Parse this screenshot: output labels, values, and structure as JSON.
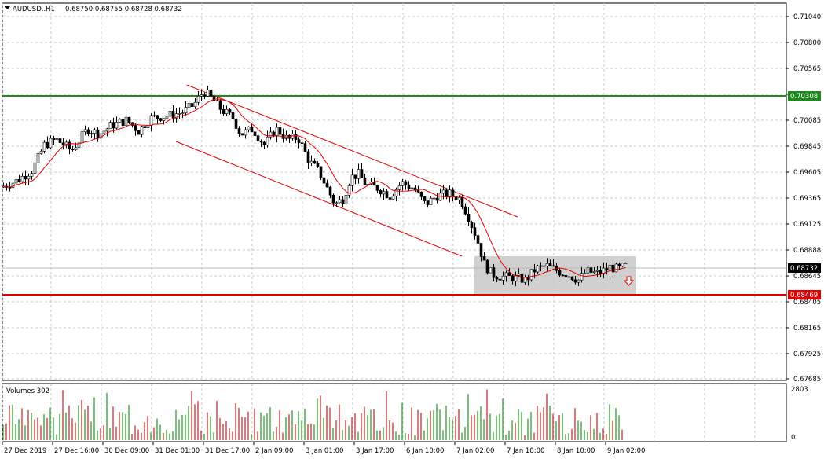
{
  "header": {
    "symbol": "AUDUSD..H1",
    "ohlc": "0.68750 0.68755 0.68728 0.68732"
  },
  "colors": {
    "background": "#ffffff",
    "grid": "#c0c0c0",
    "bull": "#ffffff",
    "bear": "#000000",
    "ma": "#e00000",
    "channel": "#e00000",
    "resistance": "#1e8a1e",
    "support": "#e00000",
    "zone": "#c8c8c8",
    "vol_up": "#1e9a1e",
    "vol_down": "#d01a1a"
  },
  "price_axis": {
    "ticks": [
      "0.71040",
      "0.70800",
      "0.70565",
      "0.70325",
      "0.70085",
      "0.69845",
      "0.69605",
      "0.69365",
      "0.69125",
      "0.68888",
      "0.68645",
      "0.68405",
      "0.68165",
      "0.67925",
      "0.67685"
    ],
    "current_price": "0.68732",
    "resistance_price": "0.70308",
    "support_price": "0.68469"
  },
  "volume_panel": {
    "label": "Volumes 302",
    "max_label": "2803",
    "min_label": "0"
  },
  "time_axis": {
    "labels": [
      "27 Dec 2019",
      "27 Dec 16:00",
      "30 Dec 09:00",
      "31 Dec 01:00",
      "31 Dec 17:00",
      "2 Jan 09:00",
      "3 Jan 01:00",
      "3 Jan 17:00",
      "6 Jan 10:00",
      "7 Jan 02:00",
      "7 Jan 18:00",
      "8 Jan 10:00",
      "9 Jan 02:00"
    ]
  },
  "chart_data": {
    "type": "candlestick",
    "symbol": "AUDUSD..H1",
    "y_range": [
      0.67685,
      0.7116
    ],
    "horizontal_levels": [
      0.70308,
      0.68469
    ],
    "price_path": [
      [
        0,
        0.6946
      ],
      [
        20,
        0.6952
      ],
      [
        40,
        0.6962
      ],
      [
        55,
        0.6985
      ],
      [
        70,
        0.699
      ],
      [
        90,
        0.698
      ],
      [
        110,
        0.7
      ],
      [
        125,
        0.6995
      ],
      [
        140,
        0.7003
      ],
      [
        160,
        0.7008
      ],
      [
        175,
        0.6998
      ],
      [
        190,
        0.701
      ],
      [
        210,
        0.7012
      ],
      [
        230,
        0.7015
      ],
      [
        245,
        0.7022
      ],
      [
        258,
        0.7035
      ],
      [
        268,
        0.7028
      ],
      [
        280,
        0.7018
      ],
      [
        295,
        0.701
      ],
      [
        305,
        0.6995
      ],
      [
        320,
        0.7
      ],
      [
        335,
        0.6985
      ],
      [
        350,
        0.7
      ],
      [
        365,
        0.699
      ],
      [
        378,
        0.6992
      ],
      [
        392,
        0.697
      ],
      [
        405,
        0.696
      ],
      [
        415,
        0.6945
      ],
      [
        425,
        0.693
      ],
      [
        435,
        0.6935
      ],
      [
        445,
        0.6955
      ],
      [
        455,
        0.6958
      ],
      [
        465,
        0.6948
      ],
      [
        480,
        0.6945
      ],
      [
        495,
        0.6938
      ],
      [
        510,
        0.695
      ],
      [
        525,
        0.6945
      ],
      [
        540,
        0.693
      ],
      [
        555,
        0.6938
      ],
      [
        570,
        0.694
      ],
      [
        585,
        0.6935
      ],
      [
        595,
        0.6918
      ],
      [
        605,
        0.69
      ],
      [
        615,
        0.6875
      ],
      [
        625,
        0.6865
      ],
      [
        640,
        0.6863
      ],
      [
        655,
        0.6862
      ],
      [
        668,
        0.686
      ],
      [
        680,
        0.687
      ],
      [
        695,
        0.6873
      ],
      [
        710,
        0.6868
      ],
      [
        725,
        0.6864
      ],
      [
        735,
        0.686
      ],
      [
        745,
        0.6868
      ],
      [
        760,
        0.6866
      ],
      [
        775,
        0.6872
      ],
      [
        785,
        0.687
      ],
      [
        795,
        0.6873
      ]
    ]
  }
}
